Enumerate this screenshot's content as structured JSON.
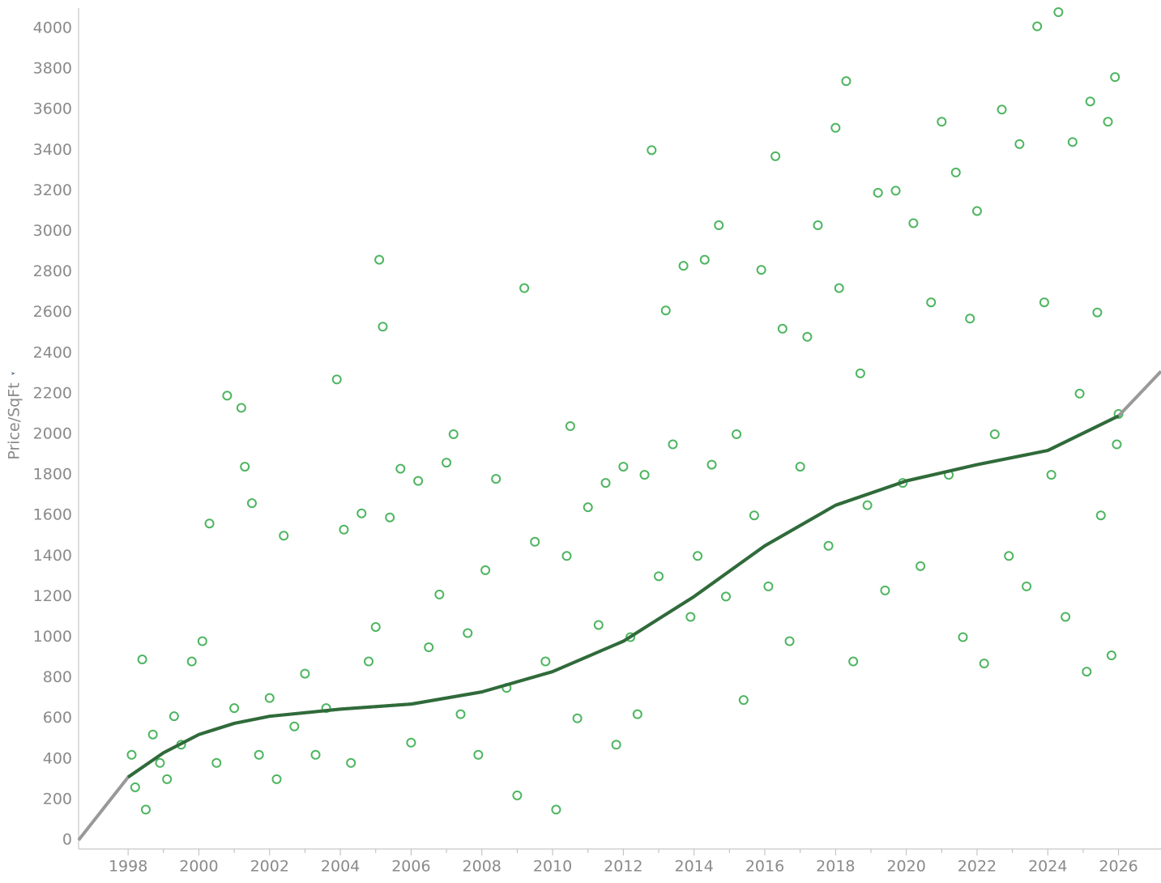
{
  "chart_data": {
    "type": "scatter",
    "y_label": "Price/SqFt",
    "xlim": [
      1996.6,
      2027.2
    ],
    "ylim": [
      -44,
      4100
    ],
    "xticks": [
      1998,
      2000,
      2002,
      2004,
      2006,
      2008,
      2010,
      2012,
      2014,
      2016,
      2018,
      2020,
      2022,
      2024,
      2026
    ],
    "yticks": [
      0,
      200,
      400,
      600,
      800,
      1000,
      1200,
      1400,
      1600,
      1800,
      2000,
      2200,
      2400,
      2600,
      2800,
      3000,
      3200,
      3400,
      3600,
      3800,
      4000
    ],
    "series": [
      {
        "type": "scatter",
        "color": "#4db560",
        "x": [
          1998.1,
          1998.2,
          1998.4,
          1998.5,
          1998.7,
          1998.9,
          1999.1,
          1999.3,
          1999.5,
          1999.8,
          2000.1,
          2000.3,
          2000.5,
          2000.8,
          2001.0,
          2001.2,
          2001.3,
          2001.5,
          2001.7,
          2002.0,
          2002.2,
          2002.4,
          2002.7,
          2003.0,
          2003.3,
          2003.6,
          2003.9,
          2004.1,
          2004.3,
          2004.6,
          2004.8,
          2005.0,
          2005.1,
          2005.2,
          2005.4,
          2005.7,
          2006.0,
          2006.2,
          2006.5,
          2006.8,
          2007.0,
          2007.2,
          2007.4,
          2007.6,
          2007.9,
          2008.1,
          2008.4,
          2008.7,
          2009.0,
          2009.2,
          2009.5,
          2009.8,
          2010.1,
          2010.4,
          2010.5,
          2010.7,
          2011.0,
          2011.3,
          2011.5,
          2011.8,
          2012.0,
          2012.2,
          2012.4,
          2012.6,
          2012.8,
          2013.0,
          2013.2,
          2013.4,
          2013.7,
          2013.9,
          2014.1,
          2014.3,
          2014.5,
          2014.7,
          2014.9,
          2015.2,
          2015.4,
          2015.7,
          2015.9,
          2016.1,
          2016.3,
          2016.5,
          2016.7,
          2017.0,
          2017.2,
          2017.5,
          2017.8,
          2018.0,
          2018.1,
          2018.3,
          2018.5,
          2018.7,
          2018.9,
          2019.2,
          2019.4,
          2019.7,
          2019.9,
          2020.2,
          2020.4,
          2020.7,
          2021.0,
          2021.2,
          2021.4,
          2021.6,
          2021.8,
          2022.0,
          2022.2,
          2022.5,
          2022.7,
          2022.9,
          2023.2,
          2023.4,
          2023.7,
          2023.9,
          2024.1,
          2024.3,
          2024.5,
          2024.7,
          2024.9,
          2025.1,
          2025.2,
          2025.4,
          2025.5,
          2025.7,
          2025.8,
          2025.9,
          2025.95,
          2026.0
        ],
        "values": [
          420,
          260,
          890,
          150,
          520,
          380,
          300,
          610,
          470,
          880,
          980,
          1560,
          380,
          2190,
          650,
          2130,
          1840,
          1660,
          420,
          700,
          300,
          1500,
          560,
          820,
          420,
          650,
          2270,
          1530,
          380,
          1610,
          880,
          1050,
          2860,
          2530,
          1590,
          1830,
          480,
          1770,
          950,
          1210,
          1860,
          2000,
          620,
          1020,
          420,
          1330,
          1780,
          750,
          220,
          2720,
          1470,
          880,
          150,
          1400,
          2040,
          600,
          1640,
          1060,
          1760,
          470,
          1840,
          1000,
          620,
          1800,
          3400,
          1300,
          2610,
          1950,
          2830,
          1100,
          1400,
          2860,
          1850,
          3030,
          1200,
          2000,
          690,
          1600,
          2810,
          1250,
          3370,
          2520,
          980,
          1840,
          2480,
          3030,
          1450,
          3510,
          2720,
          3740,
          880,
          2300,
          1650,
          3190,
          1230,
          3200,
          1760,
          3040,
          1350,
          2650,
          3540,
          1800,
          3290,
          1000,
          2570,
          3100,
          870,
          2000,
          3600,
          1400,
          3430,
          1250,
          4010,
          2650,
          1800,
          4080,
          1100,
          3440,
          2200,
          830,
          3640,
          2600,
          1600,
          3540,
          910,
          3760,
          1950,
          2100
        ]
      },
      {
        "type": "line",
        "color": "#999999",
        "x": [
          1996.6,
          1998,
          1999,
          2000,
          2001,
          2002,
          2004,
          2006,
          2008,
          2010,
          2012,
          2014,
          2016,
          2018,
          2020,
          2022,
          2024,
          2026,
          2027.2
        ],
        "values": [
          0,
          310,
          430,
          520,
          575,
          610,
          645,
          670,
          730,
          830,
          980,
          1200,
          1450,
          1650,
          1770,
          1850,
          1920,
          2090,
          2310
        ]
      },
      {
        "type": "line",
        "color": "#2f6b3a",
        "x": [
          1998,
          1999,
          2000,
          2001,
          2002,
          2004,
          2006,
          2008,
          2010,
          2012,
          2014,
          2016,
          2018,
          2020,
          2022,
          2024,
          2026
        ],
        "values": [
          310,
          430,
          520,
          575,
          610,
          645,
          670,
          730,
          830,
          980,
          1200,
          1450,
          1650,
          1770,
          1850,
          1920,
          2090
        ]
      }
    ]
  }
}
